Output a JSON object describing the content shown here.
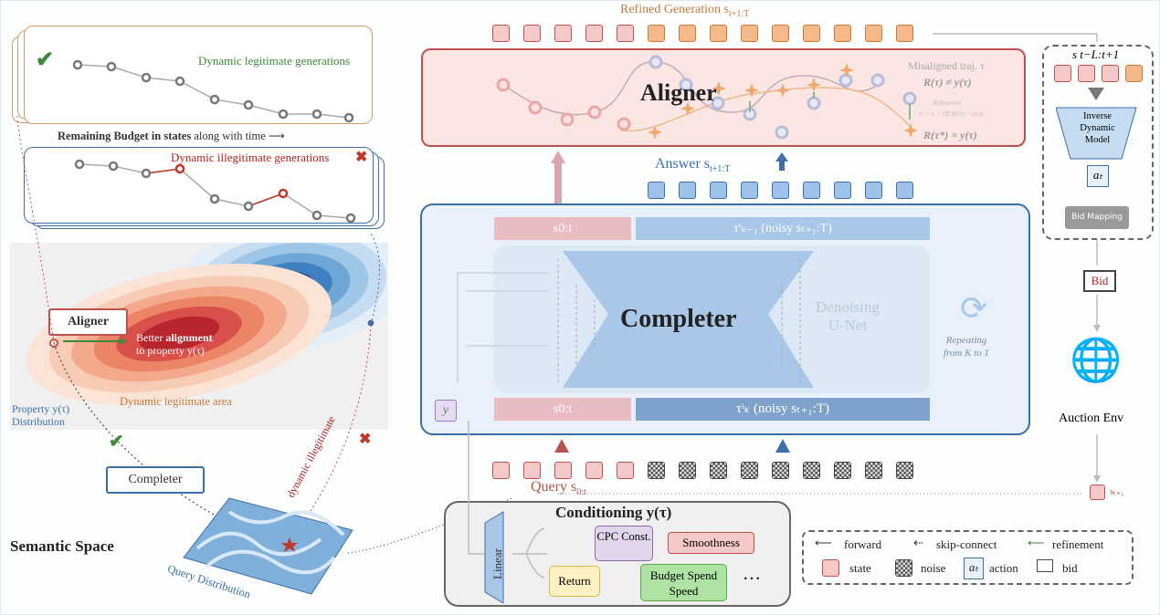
{
  "left": {
    "legit_label": "Dynamic legitimate generations",
    "budget_label_bold": "Remaining Budget in states",
    "budget_label_rest": " along with time",
    "illegit_label": "Dynamic illegitimate generations",
    "aligner_label": "Aligner",
    "better_alignment_1": "Better ",
    "better_alignment_bold": "alignment",
    "better_alignment_2": "to property y(τ)",
    "legit_area": "Dynamic legitimate area",
    "property_dist_1": "Property y(τ)",
    "property_dist_2": "Distribution",
    "completer_label": "Completer",
    "dynamic_illegitimate": "dynamic illegitimate",
    "semantic_space": "Semantic Space",
    "query_distribution": "Query Distribution"
  },
  "main": {
    "refined_generation": "Refined Generation s",
    "refined_sub": "t+1:T",
    "aligner_title": "Aligner",
    "misaligned_1": "Misaligned traj. τ",
    "misaligned_2": "R(τ) ≠ y(τ)",
    "refinement": "Refinement",
    "refinement_eq": "x'ᵢ = xᵢ − λ∇ₓ‖R(τ) − y(τ)‖₂",
    "aligned_eq": "R(τ*) = y(τ)",
    "answer": "Answer s",
    "answer_sub": "t+1:T",
    "s0t": "s0:t",
    "tau_k1": "τᵗₖ₋₁ (noisy sₜ₊₁:T)",
    "tau_k": "τᵗₖ (noisy sₜ₊₁:T)",
    "completer_title": "Completer",
    "unet_1": "Denoising",
    "unet_2": "U-Net",
    "repeat_1": "Repeating",
    "repeat_2": "from K to 1",
    "y_label": "y",
    "query": "Query s",
    "query_sub": "0:t"
  },
  "conditioning": {
    "title": "Conditioning y(τ)",
    "linear": "Linear",
    "items": [
      "CPC Const.",
      "Smoothness",
      "Return",
      "Budget Spend Speed",
      "…"
    ]
  },
  "legend": {
    "forward": "forward",
    "skip": "skip-connect",
    "refinement": "refinement",
    "state": "state",
    "noise": "noise",
    "action_symbol": "aₜ",
    "action": "action",
    "bid": "bid"
  },
  "right": {
    "window": "s t−L:t+1",
    "idm": [
      "Inverse",
      "Dynamic",
      "Model"
    ],
    "action": "aₜ",
    "bid_mapping": "Bid Mapping",
    "bid": "Bid",
    "auction_env": "Auction Env",
    "s_next": "sₜ₊₁"
  },
  "colors": {
    "pink": "#f5c9c7",
    "red": "#c0504d",
    "blue": "#3d6ea8",
    "orange": "#f6b98a",
    "green": "#3a8a3a"
  }
}
